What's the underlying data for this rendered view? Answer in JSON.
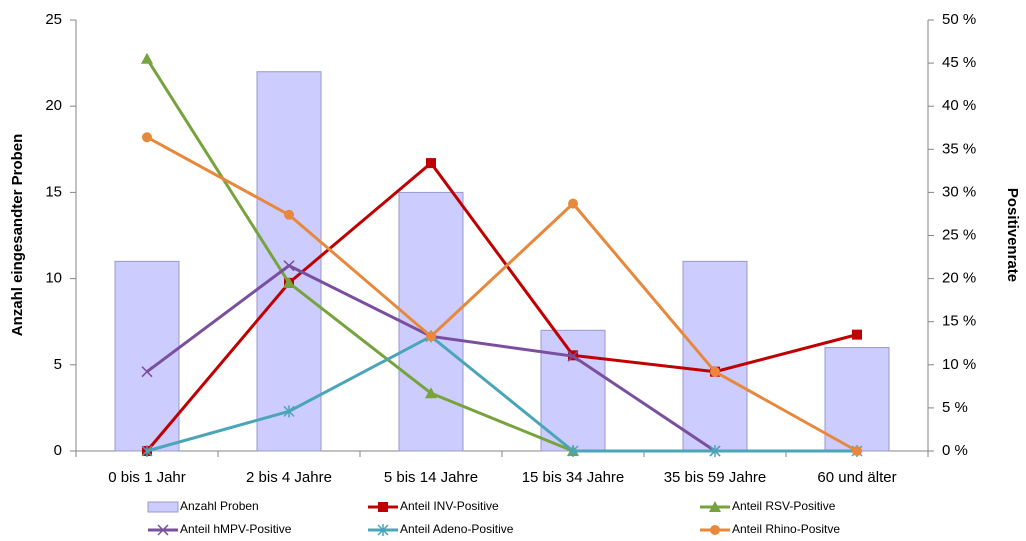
{
  "chart_data": {
    "type": "bar-line",
    "y_label": "Anzahl eingesandter Proben",
    "y2_label": "Positivenrate",
    "categories": [
      "0 bis 1 Jahr",
      "2 bis 4 Jahre",
      "5 bis 14 Jahre",
      "15 bis 34 Jahre",
      "35 bis 59 Jahre",
      "60 und älter"
    ],
    "ylim": [
      0,
      25
    ],
    "yticks": [
      0,
      5,
      10,
      15,
      20,
      25
    ],
    "y2lim": [
      0,
      50
    ],
    "y2ticks": [
      {
        "value": 0,
        "label": "0 %"
      },
      {
        "value": 5,
        "label": "5 %"
      },
      {
        "value": 10,
        "label": "10 %"
      },
      {
        "value": 15,
        "label": "15 %"
      },
      {
        "value": 20,
        "label": "20 %"
      },
      {
        "value": 25,
        "label": "25 %"
      },
      {
        "value": 30,
        "label": "30 %"
      },
      {
        "value": 35,
        "label": "35 %"
      },
      {
        "value": 40,
        "label": "40 %"
      },
      {
        "value": 45,
        "label": "45 %"
      },
      {
        "value": 50,
        "label": "50 %"
      }
    ],
    "series": [
      {
        "name": "Anzahl Proben",
        "kind": "bar",
        "color": "#ccccff",
        "values": [
          11,
          22,
          15,
          7,
          11,
          6
        ]
      },
      {
        "name": "Anteil INV-Positive",
        "kind": "line",
        "axis": "y2",
        "marker": "square",
        "color": "#c00000",
        "values": [
          0,
          19.5,
          33.4,
          11.1,
          9.2,
          13.5
        ]
      },
      {
        "name": "Anteil RSV-Positive",
        "kind": "line",
        "axis": "y2",
        "marker": "triangle",
        "color": "#77a33c",
        "values": [
          45.5,
          19.5,
          6.7,
          0,
          null,
          null
        ]
      },
      {
        "name": "Anteil hMPV-Positive",
        "kind": "line",
        "axis": "y2",
        "marker": "cross",
        "color": "#7a4f9e",
        "values": [
          9.2,
          21.5,
          13.3,
          11.0,
          0,
          null
        ]
      },
      {
        "name": "Anteil Adeno-Positive",
        "kind": "line",
        "axis": "y2",
        "marker": "star",
        "color": "#4ba5b8",
        "values": [
          0,
          4.6,
          13.3,
          0,
          0,
          0
        ]
      },
      {
        "name": "Anteil Rhino-Positve",
        "kind": "line",
        "axis": "y2",
        "marker": "circle",
        "color": "#e8883c",
        "values": [
          36.4,
          27.4,
          13.3,
          28.7,
          9.2,
          0
        ]
      }
    ]
  }
}
